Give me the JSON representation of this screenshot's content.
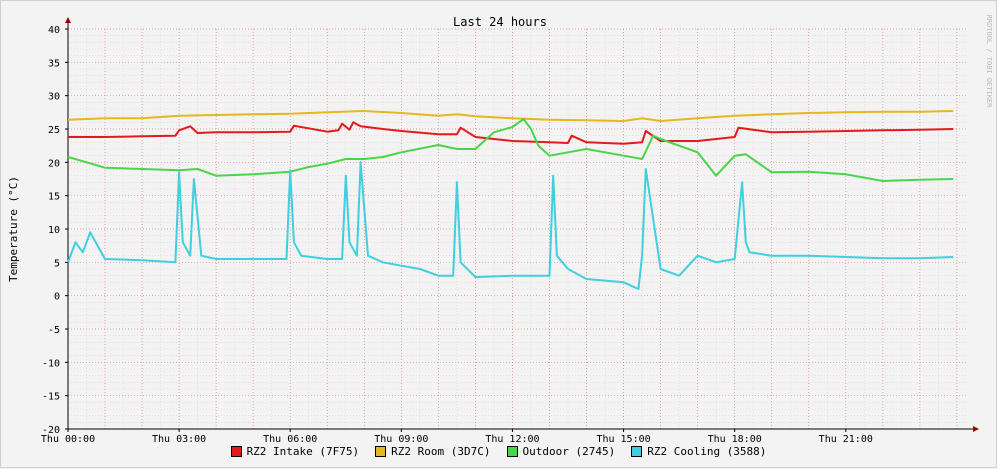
{
  "chart_data": {
    "type": "line",
    "title": "Last 24 hours",
    "ylabel": "Temperature (°C)",
    "xlabel": "",
    "watermark": "RRDTOOL / TOBI OETIKER",
    "ylim": [
      -20,
      40
    ],
    "yticks": [
      -20,
      -15,
      -10,
      -5,
      0,
      5,
      10,
      15,
      20,
      25,
      30,
      35,
      40
    ],
    "xlim": [
      0,
      24.3
    ],
    "xticks": [
      {
        "x": 0,
        "label": "Thu 00:00"
      },
      {
        "x": 3,
        "label": "Thu 03:00"
      },
      {
        "x": 6,
        "label": "Thu 06:00"
      },
      {
        "x": 9,
        "label": "Thu 09:00"
      },
      {
        "x": 12,
        "label": "Thu 12:00"
      },
      {
        "x": 15,
        "label": "Thu 15:00"
      },
      {
        "x": 18,
        "label": "Thu 18:00"
      },
      {
        "x": 21,
        "label": "Thu 21:00"
      }
    ],
    "grid": true,
    "legend_position": "bottom",
    "series": [
      {
        "name": "RZ2 Intake (7F75)",
        "color": "#e31a1c",
        "x": [
          0,
          1,
          2,
          2.9,
          3.0,
          3.3,
          3.5,
          4,
          5,
          6.0,
          6.1,
          7,
          7.3,
          7.4,
          7.6,
          7.7,
          7.9,
          8.5,
          9,
          10,
          10.5,
          10.6,
          11,
          12,
          13,
          13.5,
          13.6,
          14,
          15,
          15.5,
          15.6,
          16,
          17,
          18,
          18.1,
          19,
          20,
          21,
          22,
          23,
          23.9
        ],
        "y": [
          23.8,
          23.8,
          23.9,
          24.0,
          24.8,
          25.4,
          24.4,
          24.5,
          24.5,
          24.6,
          25.5,
          24.6,
          24.8,
          25.8,
          24.9,
          26.0,
          25.4,
          25.0,
          24.7,
          24.2,
          24.2,
          25.2,
          23.8,
          23.2,
          23.0,
          22.9,
          24.0,
          23.0,
          22.8,
          23.0,
          24.7,
          23.2,
          23.2,
          23.8,
          25.2,
          24.5,
          24.6,
          24.7,
          24.8,
          24.9,
          25.0
        ]
      },
      {
        "name": "RZ2 Room (3D7C)",
        "color": "#e6b71e",
        "x": [
          0,
          1,
          2,
          3,
          4,
          5,
          6,
          7,
          8,
          9,
          10,
          10.5,
          11,
          12,
          13,
          14,
          15,
          15.5,
          16,
          17,
          18,
          19,
          20,
          21,
          22,
          23,
          23.9
        ],
        "y": [
          26.4,
          26.6,
          26.6,
          27.0,
          27.1,
          27.2,
          27.3,
          27.5,
          27.7,
          27.4,
          27.0,
          27.2,
          26.9,
          26.6,
          26.4,
          26.3,
          26.2,
          26.6,
          26.2,
          26.6,
          27.0,
          27.2,
          27.4,
          27.5,
          27.6,
          27.6,
          27.7
        ]
      },
      {
        "name": "Outdoor (2745)",
        "color": "#4ad44a",
        "x": [
          0,
          0.5,
          1,
          2,
          3,
          3.5,
          4,
          5,
          6,
          6.5,
          7,
          7.5,
          8,
          8.5,
          9,
          10,
          10.5,
          11,
          11.5,
          12,
          12.3,
          12.5,
          12.7,
          13,
          13.5,
          14,
          14.5,
          15,
          15.5,
          15.8,
          16,
          17,
          17.5,
          18,
          18.3,
          19,
          20,
          21,
          22,
          23,
          23.9
        ],
        "y": [
          20.8,
          20.0,
          19.2,
          19.0,
          18.8,
          19.0,
          18.0,
          18.2,
          18.6,
          19.3,
          19.8,
          20.5,
          20.5,
          20.8,
          21.5,
          22.6,
          22.0,
          22.0,
          24.5,
          25.3,
          26.5,
          25.0,
          22.5,
          21.0,
          21.5,
          22.0,
          21.5,
          21.0,
          20.5,
          24.0,
          23.5,
          21.5,
          18.0,
          21.0,
          21.2,
          18.5,
          18.6,
          18.2,
          17.2,
          17.4,
          17.5
        ]
      },
      {
        "name": "RZ2 Cooling (3588)",
        "color": "#3fcfdf",
        "x": [
          0,
          0.2,
          0.4,
          0.6,
          1,
          2,
          2.9,
          3.0,
          3.1,
          3.3,
          3.4,
          3.6,
          4,
          5,
          5.9,
          6.0,
          6.1,
          6.3,
          7,
          7.4,
          7.5,
          7.6,
          7.8,
          7.9,
          8.1,
          8.5,
          9,
          9.5,
          10,
          10.4,
          10.5,
          10.6,
          11,
          12,
          13.0,
          13.1,
          13.2,
          13.5,
          14,
          15,
          15.4,
          15.5,
          15.6,
          16,
          16.5,
          17,
          17.5,
          18,
          18.2,
          18.3,
          18.4,
          19,
          19.5,
          20,
          21,
          22,
          23,
          23.9
        ],
        "y": [
          5.0,
          8.0,
          6.5,
          9.5,
          5.5,
          5.3,
          5.0,
          18.5,
          8.0,
          6.0,
          17.5,
          6.0,
          5.5,
          5.5,
          5.5,
          18.8,
          8.0,
          6.0,
          5.5,
          5.5,
          18.0,
          8.0,
          6.0,
          20.0,
          6.0,
          5.0,
          4.5,
          4.0,
          3.0,
          3.0,
          17.0,
          5.0,
          2.8,
          3.0,
          3.0,
          18.0,
          6.0,
          4.0,
          2.5,
          2.0,
          1.0,
          6.0,
          19.0,
          4.0,
          3.0,
          6.0,
          5.0,
          5.5,
          17.0,
          8.0,
          6.5,
          6.0,
          6.0,
          6.0,
          5.8,
          5.6,
          5.6,
          5.8
        ]
      }
    ]
  }
}
